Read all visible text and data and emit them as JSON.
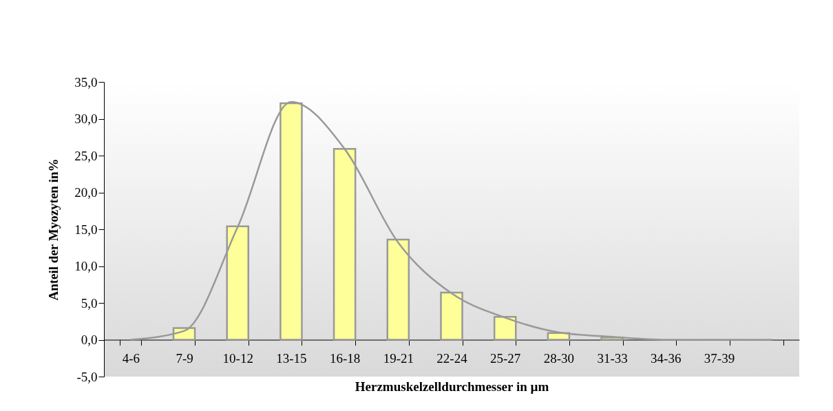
{
  "chart_data": {
    "type": "bar",
    "xlabel": "Herzmuskelzelldurchmesser in µm",
    "ylabel": "Anteil der Myozyten in%",
    "categories": [
      "4-6",
      "7-9",
      "10-12",
      "13-15",
      "16-18",
      "19-21",
      "22-24",
      "25-27",
      "28-30",
      "31-33",
      "34-36",
      "37-39",
      null
    ],
    "series": [
      {
        "color": "#ffff99",
        "values": [
          0,
          1.6,
          15.4,
          32.1,
          25.9,
          13.6,
          6.4,
          3.1,
          0.9,
          0.3,
          0,
          0,
          0
        ]
      },
      {
        "type": "line",
        "color": "#999999",
        "values": [
          0,
          1.2,
          15.3,
          32.3,
          25.9,
          13.2,
          6.3,
          3.0,
          1.0,
          0.4,
          0,
          0,
          0
        ]
      }
    ],
    "ylim": [
      -5,
      35
    ],
    "yticks": [
      {
        "value": -5,
        "label": "-5,0"
      },
      {
        "value": 0,
        "label": "0,0"
      },
      {
        "value": 5,
        "label": "5,0"
      },
      {
        "value": 10,
        "label": "10,0"
      },
      {
        "value": 15,
        "label": "15,0"
      },
      {
        "value": 20,
        "label": "20,0"
      },
      {
        "value": 25,
        "label": "25,0"
      },
      {
        "value": 30,
        "label": "30,0"
      },
      {
        "value": 35,
        "label": "35,0"
      }
    ],
    "grid": false,
    "marker": "none"
  }
}
